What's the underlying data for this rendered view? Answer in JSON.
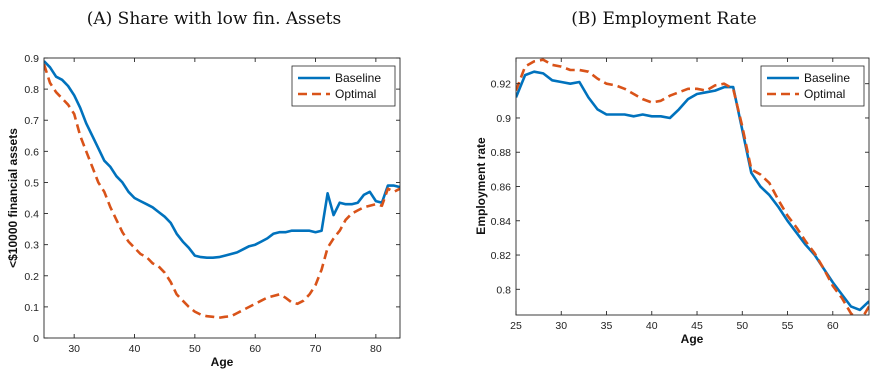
{
  "chart_data": [
    {
      "type": "line",
      "title": "(A) Share with low fin. Assets",
      "xlabel": "Age",
      "ylabel": "<$10000 financial assets",
      "xlim": [
        25,
        84
      ],
      "ylim": [
        0,
        0.9
      ],
      "xticks": [
        30,
        40,
        50,
        60,
        70,
        80
      ],
      "yticks": [
        0,
        0.1,
        0.2,
        0.3,
        0.4,
        0.5,
        0.6,
        0.7,
        0.8,
        0.9
      ],
      "legend": "top-right",
      "grid": false,
      "series": [
        {
          "name": "Baseline",
          "color": "#0072BD",
          "style": "solid",
          "x": [
            25,
            26,
            27,
            28,
            29,
            30,
            31,
            32,
            33,
            34,
            35,
            36,
            37,
            38,
            39,
            40,
            41,
            42,
            43,
            44,
            45,
            46,
            47,
            48,
            49,
            50,
            51,
            52,
            53,
            54,
            55,
            56,
            57,
            58,
            59,
            60,
            61,
            62,
            63,
            64,
            65,
            66,
            67,
            68,
            69,
            70,
            71,
            72,
            73,
            74,
            75,
            76,
            77,
            78,
            79,
            80,
            81,
            82,
            83,
            84
          ],
          "values": [
            0.89,
            0.87,
            0.84,
            0.83,
            0.81,
            0.78,
            0.74,
            0.69,
            0.65,
            0.61,
            0.57,
            0.55,
            0.52,
            0.5,
            0.47,
            0.45,
            0.44,
            0.43,
            0.42,
            0.405,
            0.39,
            0.37,
            0.335,
            0.31,
            0.29,
            0.265,
            0.26,
            0.258,
            0.258,
            0.26,
            0.265,
            0.27,
            0.275,
            0.285,
            0.295,
            0.3,
            0.31,
            0.32,
            0.335,
            0.34,
            0.34,
            0.345,
            0.345,
            0.345,
            0.345,
            0.34,
            0.345,
            0.465,
            0.395,
            0.435,
            0.43,
            0.43,
            0.435,
            0.46,
            0.47,
            0.44,
            0.435,
            0.49,
            0.49,
            0.485
          ]
        },
        {
          "name": "Optimal",
          "color": "#D95319",
          "style": "dashed",
          "x": [
            25,
            26,
            27,
            28,
            29,
            30,
            31,
            32,
            33,
            34,
            35,
            36,
            37,
            38,
            39,
            40,
            41,
            42,
            43,
            44,
            45,
            46,
            47,
            48,
            49,
            50,
            51,
            52,
            53,
            54,
            55,
            56,
            57,
            58,
            59,
            60,
            61,
            62,
            63,
            64,
            65,
            66,
            67,
            68,
            69,
            70,
            71,
            72,
            73,
            74,
            75,
            76,
            77,
            78,
            79,
            80,
            81,
            82,
            83,
            84
          ],
          "values": [
            0.88,
            0.82,
            0.79,
            0.77,
            0.75,
            0.72,
            0.65,
            0.6,
            0.55,
            0.5,
            0.47,
            0.42,
            0.38,
            0.34,
            0.31,
            0.29,
            0.27,
            0.26,
            0.24,
            0.23,
            0.21,
            0.18,
            0.14,
            0.12,
            0.1,
            0.085,
            0.075,
            0.07,
            0.068,
            0.065,
            0.068,
            0.07,
            0.08,
            0.09,
            0.1,
            0.11,
            0.12,
            0.13,
            0.135,
            0.14,
            0.13,
            0.115,
            0.11,
            0.12,
            0.14,
            0.17,
            0.22,
            0.29,
            0.32,
            0.345,
            0.38,
            0.4,
            0.41,
            0.42,
            0.425,
            0.43,
            0.425,
            0.48,
            0.47,
            0.48
          ]
        }
      ]
    },
    {
      "type": "line",
      "title": "(B) Employment Rate",
      "xlabel": "Age",
      "ylabel": "Employment rate",
      "xlim": [
        25,
        64
      ],
      "ylim": [
        0.785,
        0.935
      ],
      "xticks": [
        25,
        30,
        35,
        40,
        45,
        50,
        55,
        60
      ],
      "yticks": [
        0.8,
        0.82,
        0.84,
        0.86,
        0.88,
        0.9,
        0.92
      ],
      "legend": "top-right",
      "grid": false,
      "series": [
        {
          "name": "Baseline",
          "color": "#0072BD",
          "style": "solid",
          "x": [
            25,
            26,
            27,
            28,
            29,
            30,
            31,
            32,
            33,
            34,
            35,
            36,
            37,
            38,
            39,
            40,
            41,
            42,
            43,
            44,
            45,
            46,
            47,
            48,
            49,
            50,
            51,
            52,
            53,
            54,
            55,
            56,
            57,
            58,
            59,
            60,
            61,
            62,
            63,
            64
          ],
          "values": [
            0.912,
            0.925,
            0.927,
            0.926,
            0.922,
            0.921,
            0.92,
            0.921,
            0.912,
            0.905,
            0.902,
            0.902,
            0.902,
            0.901,
            0.902,
            0.901,
            0.901,
            0.9,
            0.905,
            0.911,
            0.914,
            0.915,
            0.916,
            0.918,
            0.918,
            0.893,
            0.868,
            0.86,
            0.855,
            0.848,
            0.84,
            0.833,
            0.826,
            0.82,
            0.812,
            0.804,
            0.797,
            0.79,
            0.788,
            0.793
          ]
        },
        {
          "name": "Optimal",
          "color": "#D95319",
          "style": "dashed",
          "x": [
            25,
            26,
            27,
            28,
            29,
            30,
            31,
            32,
            33,
            34,
            35,
            36,
            37,
            38,
            39,
            40,
            41,
            42,
            43,
            44,
            45,
            46,
            47,
            48,
            49,
            50,
            51,
            52,
            53,
            54,
            55,
            56,
            57,
            58,
            59,
            60,
            61,
            62,
            63,
            64
          ],
          "values": [
            0.916,
            0.93,
            0.933,
            0.934,
            0.931,
            0.93,
            0.928,
            0.928,
            0.927,
            0.923,
            0.92,
            0.919,
            0.917,
            0.914,
            0.911,
            0.909,
            0.91,
            0.913,
            0.915,
            0.917,
            0.917,
            0.916,
            0.919,
            0.92,
            0.917,
            0.895,
            0.87,
            0.867,
            0.862,
            0.852,
            0.843,
            0.836,
            0.828,
            0.821,
            0.812,
            0.802,
            0.795,
            0.786,
            0.781,
            0.79
          ]
        }
      ]
    }
  ]
}
